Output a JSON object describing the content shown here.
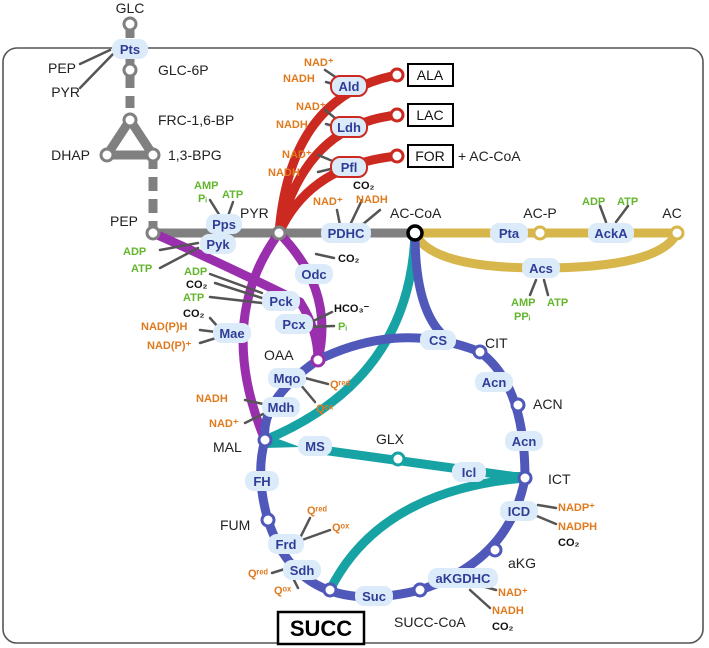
{
  "colors": {
    "glycolysis": "#808080",
    "fermentation": "#cc2a21",
    "acetate": "#d7b64c",
    "anaplerotic": "#9a2fae",
    "tca": "#5059ba",
    "glyoxylate": "#17a3a3",
    "enzyme_fill": "#dcebfa",
    "enzyme_text": "#2f3d96",
    "cofactor_orange": "#e07a1e",
    "cofactor_green": "#62b52c",
    "cofactor_black": "#111111"
  },
  "metabolites": {
    "glc": "GLC",
    "pep_in": "PEP",
    "pyr_in": "PYR",
    "glc6p": "GLC-6P",
    "frc16bp": "FRC-1,6-BP",
    "dhap": "DHAP",
    "bpg": "1,3-BPG",
    "pep": "PEP",
    "pyr": "PYR",
    "accoa": "AC-CoA",
    "acp": "AC-P",
    "ac": "AC",
    "ala": "ALA",
    "lac": "LAC",
    "for": "FOR",
    "for_extra": "+ AC-CoA",
    "oaa": "OAA",
    "cit": "CIT",
    "acn": "ACN",
    "ict": "ICT",
    "glx": "GLX",
    "mal": "MAL",
    "fum": "FUM",
    "akg": "aKG",
    "succcoa": "SUCC-CoA",
    "succ": "SUCC"
  },
  "enzymes": {
    "pts": "Pts",
    "ald": "Ald",
    "ldh": "Ldh",
    "pfl": "Pfl",
    "pps": "Pps",
    "pyk": "Pyk",
    "pdhc": "PDHC",
    "pta": "Pta",
    "acka": "AckA",
    "acs": "Acs",
    "odc": "Odc",
    "pck": "Pck",
    "pcx": "Pcx",
    "mae": "Mae",
    "cs": "CS",
    "acn1": "Acn",
    "acn2": "Acn",
    "mqo": "Mqo",
    "mdh": "Mdh",
    "ms": "MS",
    "icl": "Icl",
    "fh": "FH",
    "icd": "ICD",
    "frd": "Frd",
    "sdh": "Sdh",
    "suc": "Suc",
    "akgdhc": "aKGDHC"
  },
  "cofactors": {
    "ald_nad": "NAD⁺",
    "ald_nadh": "NADH",
    "ldh_nad": "NAD⁺",
    "ldh_nadh": "NADH",
    "pfl_nad": "NAD⁺",
    "pfl_nadh": "NADH",
    "pdhc_nad": "NAD⁺",
    "pdhc_co2": "CO₂",
    "pdhc_nadh": "NADH",
    "pps_amp": "AMP",
    "pps_pi": "Pᵢ",
    "pps_atp": "ATP",
    "pyk_adp": "ADP",
    "pyk_atp": "ATP",
    "acka_adp": "ADP",
    "acka_atp": "ATP",
    "acs_amp": "AMP",
    "acs_ppi": "PPᵢ",
    "acs_atp": "ATP",
    "odc_co2": "CO₂",
    "pck_adp": "ADP",
    "pck_co2": "CO₂",
    "pck_atp": "ATP",
    "pcx_hco3": "HCO₃⁻",
    "pcx_pi": "Pᵢ",
    "mae_co2": "CO₂",
    "mae_nadph": "NAD(P)H",
    "mae_nadp": "NAD(P)⁺",
    "mqo_qred": "Qʳᵉᵈ",
    "mqo_qox": "Qᵒˣ",
    "mdh_nadh": "NADH",
    "mdh_nad": "NAD⁺",
    "icd_nadp": "NADP⁺",
    "icd_nadph": "NADPH",
    "icd_co2": "CO₂",
    "frd_qred": "Qʳᵉᵈ",
    "frd_qox": "Qᵒˣ",
    "sdh_qred": "Qʳᵉᵈ",
    "sdh_qox": "Qᵒˣ",
    "akg_nad": "NAD⁺",
    "akg_nadh": "NADH",
    "akg_co2": "CO₂"
  }
}
